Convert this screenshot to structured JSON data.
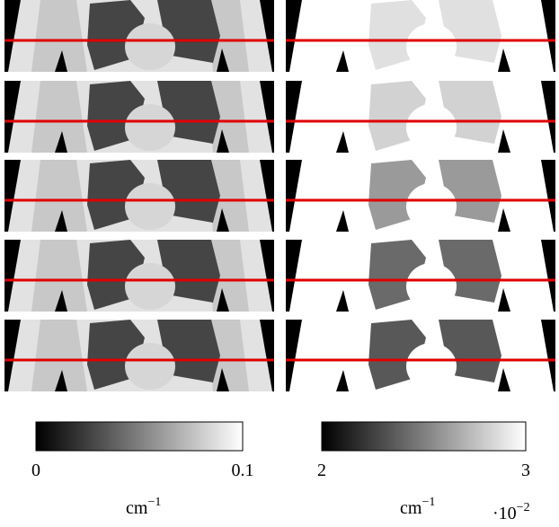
{
  "colorbars": [
    {
      "min_label": "0",
      "max_label": "0.1",
      "unit": "cm",
      "unit_exponent": "−1"
    },
    {
      "min_label": "2",
      "max_label": "3",
      "unit": "cm",
      "unit_exponent": "−1",
      "scale": "·10",
      "scale_exponent": "−2"
    }
  ]
}
